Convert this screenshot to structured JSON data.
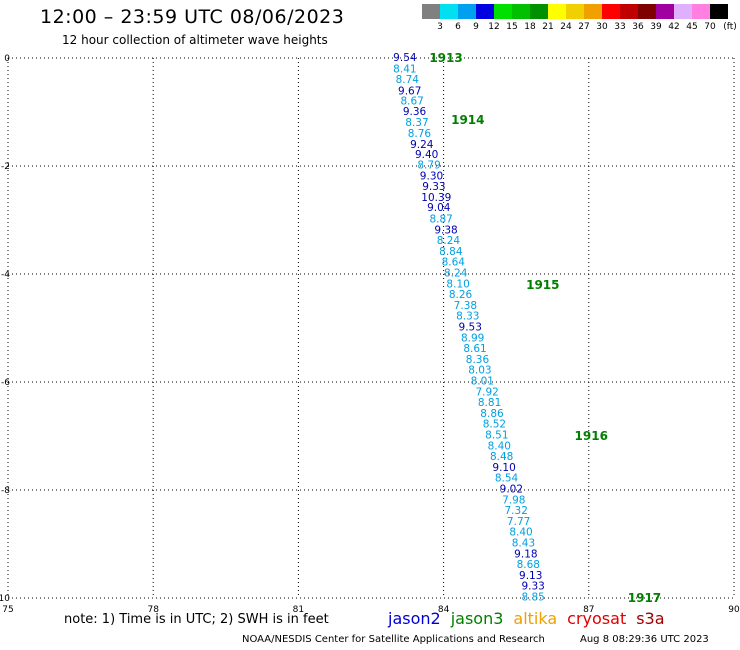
{
  "header": {
    "title": "12:00 – 23:59 UTC 08/06/2023",
    "subtitle": "12 hour collection of altimeter wave heights"
  },
  "color_scale": {
    "labels": [
      "3",
      "6",
      "9",
      "12",
      "15",
      "18",
      "21",
      "24",
      "27",
      "30",
      "33",
      "36",
      "39",
      "42",
      "45",
      "70"
    ],
    "unit": "(ft)",
    "colors": [
      "#808080",
      "#00e0f0",
      "#00a0f0",
      "#0000e0",
      "#00e000",
      "#00c000",
      "#009000",
      "#ffff00",
      "#f0d000",
      "#f0a000",
      "#ff0000",
      "#c00000",
      "#800000",
      "#a000a0",
      "#e0b0ff",
      "#ff80e0",
      "#000000"
    ]
  },
  "chart_data": {
    "type": "scatter",
    "x_ticks": [
      "75",
      "78",
      "81",
      "84",
      "87",
      "90"
    ],
    "y_ticks": [
      "0",
      "-2",
      "-4",
      "-6",
      "-8",
      "-10"
    ],
    "xlim": [
      75,
      90
    ],
    "ylim": [
      -10,
      0
    ],
    "grid": true,
    "points": [
      {
        "lon": 83.2,
        "lat": -0.0,
        "v": "9.54",
        "c": "#0000b0"
      },
      {
        "lon": 83.2,
        "lat": -0.21,
        "v": "8.41",
        "c": "#00a0e0"
      },
      {
        "lon": 83.25,
        "lat": -0.41,
        "v": "8.74",
        "c": "#00a0e0"
      },
      {
        "lon": 83.3,
        "lat": -0.62,
        "v": "9.67",
        "c": "#0000b0"
      },
      {
        "lon": 83.35,
        "lat": -0.81,
        "v": "8.67",
        "c": "#00a0e0"
      },
      {
        "lon": 83.4,
        "lat": -1.0,
        "v": "9.36",
        "c": "#0000b0"
      },
      {
        "lon": 83.45,
        "lat": -1.2,
        "v": "8.37",
        "c": "#00a0e0"
      },
      {
        "lon": 83.5,
        "lat": -1.41,
        "v": "8.76",
        "c": "#00a0e0"
      },
      {
        "lon": 83.55,
        "lat": -1.61,
        "v": "9.24",
        "c": "#0000b0"
      },
      {
        "lon": 83.65,
        "lat": -1.8,
        "v": "9.40",
        "c": "#0000b0"
      },
      {
        "lon": 83.7,
        "lat": -1.99,
        "v": "8.79",
        "c": "#00a0e0"
      },
      {
        "lon": 83.75,
        "lat": -2.19,
        "v": "9.30",
        "c": "#0000b0"
      },
      {
        "lon": 83.8,
        "lat": -2.39,
        "v": "9.33",
        "c": "#0000b0"
      },
      {
        "lon": 83.85,
        "lat": -2.59,
        "v": "10.39",
        "c": "#0000b0"
      },
      {
        "lon": 83.9,
        "lat": -2.78,
        "v": "9.04",
        "c": "#0000b0"
      },
      {
        "lon": 83.95,
        "lat": -2.99,
        "v": "8.87",
        "c": "#00a0e0"
      },
      {
        "lon": 84.05,
        "lat": -3.19,
        "v": "9.38",
        "c": "#0000b0"
      },
      {
        "lon": 84.1,
        "lat": -3.39,
        "v": "8.24",
        "c": "#00a0e0"
      },
      {
        "lon": 84.15,
        "lat": -3.59,
        "v": "8.84",
        "c": "#00a0e0"
      },
      {
        "lon": 84.2,
        "lat": -3.79,
        "v": "8.64",
        "c": "#00a0e0"
      },
      {
        "lon": 84.25,
        "lat": -3.99,
        "v": "8.24",
        "c": "#00a0e0"
      },
      {
        "lon": 84.3,
        "lat": -4.19,
        "v": "8.10",
        "c": "#00a0e0"
      },
      {
        "lon": 84.35,
        "lat": -4.39,
        "v": "8.26",
        "c": "#00a0e0"
      },
      {
        "lon": 84.45,
        "lat": -4.59,
        "v": "7.38",
        "c": "#00a0e0"
      },
      {
        "lon": 84.5,
        "lat": -4.79,
        "v": "8.33",
        "c": "#00a0e0"
      },
      {
        "lon": 84.55,
        "lat": -4.99,
        "v": "9.53",
        "c": "#0000b0"
      },
      {
        "lon": 84.6,
        "lat": -5.19,
        "v": "8.99",
        "c": "#00a0e0"
      },
      {
        "lon": 84.65,
        "lat": -5.39,
        "v": "8.61",
        "c": "#00a0e0"
      },
      {
        "lon": 84.7,
        "lat": -5.59,
        "v": "8.36",
        "c": "#00a0e0"
      },
      {
        "lon": 84.75,
        "lat": -5.79,
        "v": "8.03",
        "c": "#00a0e0"
      },
      {
        "lon": 84.8,
        "lat": -5.99,
        "v": "8.01",
        "c": "#00a0e0"
      },
      {
        "lon": 84.9,
        "lat": -6.19,
        "v": "7.92",
        "c": "#00a0e0"
      },
      {
        "lon": 84.95,
        "lat": -6.39,
        "v": "8.81",
        "c": "#00a0e0"
      },
      {
        "lon": 85.0,
        "lat": -6.59,
        "v": "8.86",
        "c": "#00a0e0"
      },
      {
        "lon": 85.05,
        "lat": -6.79,
        "v": "8.52",
        "c": "#00a0e0"
      },
      {
        "lon": 85.1,
        "lat": -6.99,
        "v": "8.51",
        "c": "#00a0e0"
      },
      {
        "lon": 85.15,
        "lat": -7.19,
        "v": "8.40",
        "c": "#00a0e0"
      },
      {
        "lon": 85.2,
        "lat": -7.39,
        "v": "8.48",
        "c": "#00a0e0"
      },
      {
        "lon": 85.25,
        "lat": -7.59,
        "v": "9.10",
        "c": "#0000b0"
      },
      {
        "lon": 85.3,
        "lat": -7.79,
        "v": "8.54",
        "c": "#00a0e0"
      },
      {
        "lon": 85.4,
        "lat": -7.99,
        "v": "9.02",
        "c": "#0000b0"
      },
      {
        "lon": 85.45,
        "lat": -8.19,
        "v": "7.98",
        "c": "#00a0e0"
      },
      {
        "lon": 85.5,
        "lat": -8.39,
        "v": "7.32",
        "c": "#00a0e0"
      },
      {
        "lon": 85.55,
        "lat": -8.59,
        "v": "7.77",
        "c": "#00a0e0"
      },
      {
        "lon": 85.6,
        "lat": -8.79,
        "v": "8.40",
        "c": "#00a0e0"
      },
      {
        "lon": 85.65,
        "lat": -8.99,
        "v": "8.43",
        "c": "#00a0e0"
      },
      {
        "lon": 85.7,
        "lat": -9.19,
        "v": "9.18",
        "c": "#0000b0"
      },
      {
        "lon": 85.75,
        "lat": -9.39,
        "v": "8.68",
        "c": "#00a0e0"
      },
      {
        "lon": 85.8,
        "lat": -9.59,
        "v": "9.13",
        "c": "#0000b0"
      },
      {
        "lon": 85.85,
        "lat": -9.79,
        "v": "9.33",
        "c": "#0000b0"
      },
      {
        "lon": 85.85,
        "lat": -9.99,
        "v": "8.85",
        "c": "#00a0e0"
      }
    ],
    "time_labels": [
      {
        "lon": 84.05,
        "lat": 0.0,
        "t": "1913"
      },
      {
        "lon": 84.5,
        "lat": -1.15,
        "t": "1914"
      },
      {
        "lon": 86.05,
        "lat": -4.2,
        "t": "1915"
      },
      {
        "lon": 87.05,
        "lat": -7.0,
        "t": "1916"
      },
      {
        "lon": 88.15,
        "lat": -10.0,
        "t": "1917"
      }
    ],
    "label_color": "#008000"
  },
  "note": "note:  1) Time is in UTC; 2) SWH is in feet",
  "legend": [
    {
      "name": "jason2",
      "color": "#0000d0"
    },
    {
      "name": "jason3",
      "color": "#008000"
    },
    {
      "name": "altika",
      "color": "#f0a000"
    },
    {
      "name": "cryosat",
      "color": "#e00000"
    },
    {
      "name": "s3a",
      "color": "#a00000"
    }
  ],
  "footer": {
    "credit": "NOAA/NESDIS Center for Satellite Applications and Research",
    "timestamp": "Aug  8 08:29:36 UTC 2023"
  }
}
